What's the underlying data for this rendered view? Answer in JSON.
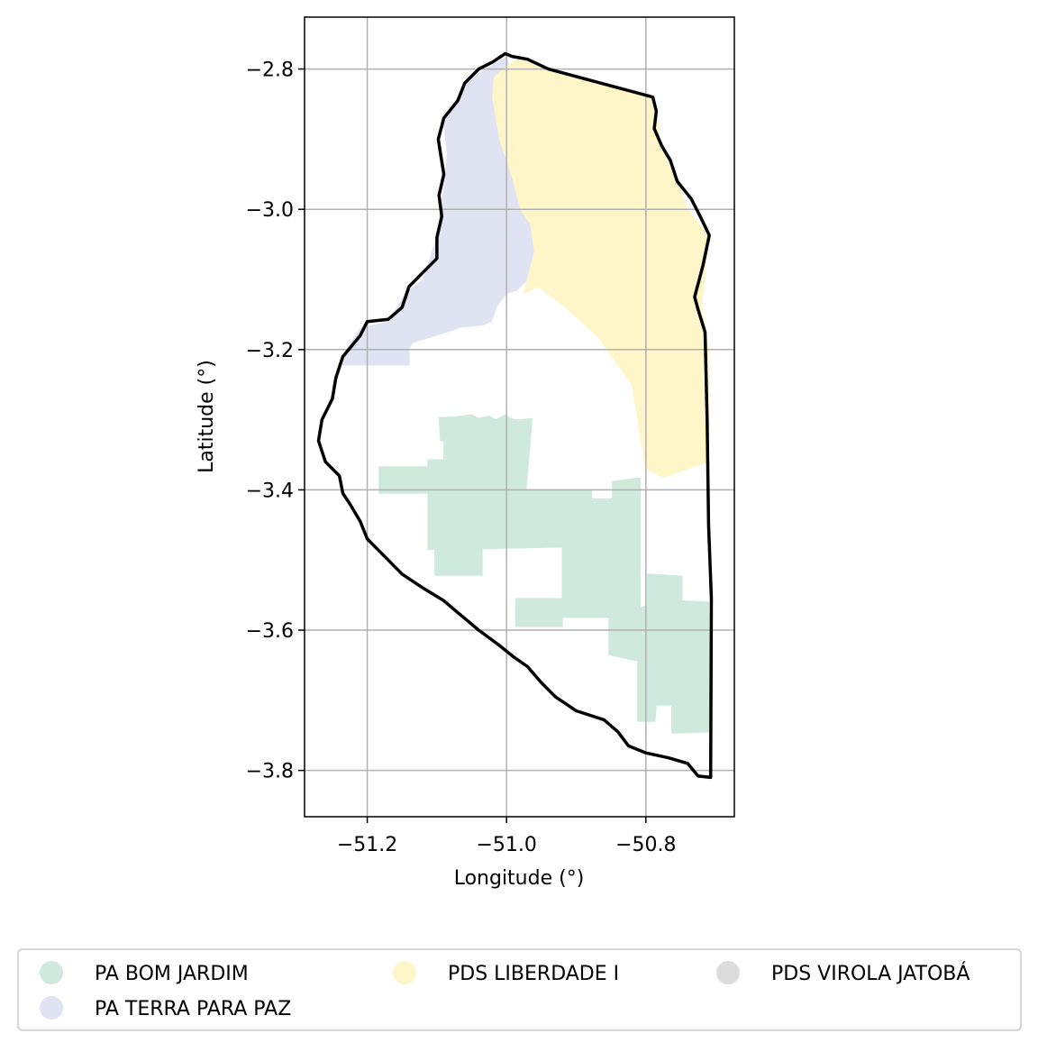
{
  "chart_data": {
    "type": "map",
    "title": "",
    "xlabel": "Longitude (°)",
    "ylabel": "Latitude (°)",
    "xlim": [
      -51.29,
      -50.673
    ],
    "ylim": [
      -3.866,
      -2.726
    ],
    "xticks": [
      {
        "value": -51.2,
        "label": "−51.2"
      },
      {
        "value": -51.0,
        "label": "−51.0"
      },
      {
        "value": -50.8,
        "label": "−50.8"
      }
    ],
    "yticks": [
      {
        "value": -2.8,
        "label": "−2.8"
      },
      {
        "value": -3.0,
        "label": "−3.0"
      },
      {
        "value": -3.2,
        "label": "−3.2"
      },
      {
        "value": -3.4,
        "label": "−3.4"
      },
      {
        "value": -3.6,
        "label": "−3.6"
      },
      {
        "value": -3.8,
        "label": "−3.8"
      }
    ],
    "grid": true,
    "legend_position": "bottom",
    "boundary_color": "#000000",
    "series": [
      {
        "name": "PA BOM JARDIM",
        "color": "#cfeadd",
        "polygons": [
          [
            [
              -51.183,
              -3.367
            ],
            [
              -51.113,
              -3.367
            ],
            [
              -51.113,
              -3.357
            ],
            [
              -51.09,
              -3.357
            ],
            [
              -51.09,
              -3.33
            ],
            [
              -51.095,
              -3.33
            ],
            [
              -51.097,
              -3.297
            ],
            [
              -51.075,
              -3.296
            ],
            [
              -51.05,
              -3.293
            ],
            [
              -51.04,
              -3.298
            ],
            [
              -51.025,
              -3.295
            ],
            [
              -51.015,
              -3.3
            ],
            [
              -51.002,
              -3.293
            ],
            [
              -50.99,
              -3.3
            ],
            [
              -50.98,
              -3.3
            ],
            [
              -50.963,
              -3.298
            ],
            [
              -50.972,
              -3.4
            ],
            [
              -50.878,
              -3.4
            ],
            [
              -50.878,
              -3.413
            ],
            [
              -50.848,
              -3.413
            ],
            [
              -50.848,
              -3.388
            ],
            [
              -50.808,
              -3.383
            ],
            [
              -50.808,
              -3.568
            ],
            [
              -50.798,
              -3.565
            ],
            [
              -50.798,
              -3.52
            ],
            [
              -50.748,
              -3.523
            ],
            [
              -50.748,
              -3.558
            ],
            [
              -50.71,
              -3.56
            ],
            [
              -50.708,
              -3.745
            ],
            [
              -50.763,
              -3.747
            ],
            [
              -50.763,
              -3.707
            ],
            [
              -50.785,
              -3.707
            ],
            [
              -50.787,
              -3.73
            ],
            [
              -50.812,
              -3.73
            ],
            [
              -50.812,
              -3.644
            ],
            [
              -50.853,
              -3.635
            ],
            [
              -50.853,
              -3.582
            ],
            [
              -50.92,
              -3.582
            ],
            [
              -50.92,
              -3.555
            ],
            [
              -50.987,
              -3.555
            ],
            [
              -50.987,
              -3.595
            ],
            [
              -50.92,
              -3.595
            ],
            [
              -50.92,
              -3.478
            ],
            [
              -50.85,
              -3.48
            ],
            [
              -51.035,
              -3.484
            ],
            [
              -51.035,
              -3.522
            ],
            [
              -51.103,
              -3.522
            ],
            [
              -51.103,
              -3.485
            ],
            [
              -51.113,
              -3.485
            ],
            [
              -51.113,
              -3.405
            ],
            [
              -51.183,
              -3.405
            ]
          ]
        ]
      },
      {
        "name": "PA TERRA PARA PAZ",
        "color": "#dfe3f2",
        "polygons": [
          [
            [
              -51.0,
              -2.783
            ],
            [
              -50.997,
              -2.793
            ],
            [
              -51.018,
              -2.812
            ],
            [
              -51.02,
              -2.84
            ],
            [
              -51.015,
              -2.87
            ],
            [
              -51.01,
              -2.9
            ],
            [
              -51.0,
              -2.93
            ],
            [
              -50.99,
              -2.96
            ],
            [
              -50.98,
              -3.0
            ],
            [
              -50.966,
              -3.02
            ],
            [
              -50.96,
              -3.06
            ],
            [
              -50.97,
              -3.1
            ],
            [
              -50.985,
              -3.115
            ],
            [
              -51.0,
              -3.12
            ],
            [
              -51.015,
              -3.14
            ],
            [
              -51.022,
              -3.16
            ],
            [
              -51.035,
              -3.165
            ],
            [
              -51.065,
              -3.168
            ],
            [
              -51.095,
              -3.178
            ],
            [
              -51.135,
              -3.19
            ],
            [
              -51.14,
              -3.198
            ],
            [
              -51.14,
              -3.222
            ],
            [
              -51.235,
              -3.222
            ],
            [
              -51.23,
              -3.2
            ],
            [
              -51.21,
              -3.17
            ],
            [
              -51.17,
              -3.16
            ],
            [
              -51.145,
              -3.12
            ],
            [
              -51.12,
              -3.1
            ],
            [
              -51.1,
              -3.04
            ],
            [
              -51.09,
              -2.97
            ],
            [
              -51.085,
              -2.92
            ],
            [
              -51.09,
              -2.88
            ],
            [
              -51.06,
              -2.82
            ],
            [
              -51.03,
              -2.8
            ]
          ]
        ]
      },
      {
        "name": "PDS LIBERDADE I",
        "color": "#fef6c8",
        "polygons": [
          [
            [
              -50.995,
              -2.792
            ],
            [
              -50.98,
              -2.786
            ],
            [
              -50.94,
              -2.8
            ],
            [
              -50.79,
              -2.84
            ],
            [
              -50.784,
              -2.87
            ],
            [
              -50.78,
              -2.9
            ],
            [
              -50.77,
              -2.93
            ],
            [
              -50.755,
              -2.96
            ],
            [
              -50.74,
              -3.0
            ],
            [
              -50.71,
              -3.04
            ],
            [
              -50.72,
              -3.14
            ],
            [
              -50.71,
              -3.2
            ],
            [
              -50.71,
              -3.36
            ],
            [
              -50.74,
              -3.37
            ],
            [
              -50.775,
              -3.382
            ],
            [
              -50.8,
              -3.37
            ],
            [
              -50.82,
              -3.25
            ],
            [
              -50.87,
              -3.18
            ],
            [
              -50.915,
              -3.14
            ],
            [
              -50.955,
              -3.11
            ],
            [
              -50.975,
              -3.12
            ],
            [
              -50.97,
              -3.1
            ],
            [
              -50.96,
              -3.06
            ],
            [
              -50.966,
              -3.02
            ],
            [
              -50.98,
              -3.0
            ],
            [
              -50.99,
              -2.96
            ],
            [
              -51.0,
              -2.93
            ],
            [
              -51.01,
              -2.9
            ],
            [
              -51.015,
              -2.87
            ],
            [
              -51.02,
              -2.84
            ],
            [
              -51.018,
              -2.812
            ]
          ]
        ]
      },
      {
        "name": "PDS VIROLA JATOBÁ",
        "color": "#dcdcdc",
        "polygons": []
      }
    ],
    "boundary": [
      [
        -51.002,
        -2.778
      ],
      [
        -50.992,
        -2.782
      ],
      [
        -50.97,
        -2.786
      ],
      [
        -50.94,
        -2.8
      ],
      [
        -50.79,
        -2.84
      ],
      [
        -50.785,
        -2.86
      ],
      [
        -50.788,
        -2.885
      ],
      [
        -50.777,
        -2.91
      ],
      [
        -50.765,
        -2.93
      ],
      [
        -50.755,
        -2.96
      ],
      [
        -50.735,
        -2.985
      ],
      [
        -50.722,
        -3.01
      ],
      [
        -50.709,
        -3.037
      ],
      [
        -50.718,
        -3.08
      ],
      [
        -50.73,
        -3.125
      ],
      [
        -50.725,
        -3.143
      ],
      [
        -50.715,
        -3.175
      ],
      [
        -50.712,
        -3.3
      ],
      [
        -50.71,
        -3.45
      ],
      [
        -50.706,
        -3.555
      ],
      [
        -50.707,
        -3.81
      ],
      [
        -50.725,
        -3.808
      ],
      [
        -50.74,
        -3.79
      ],
      [
        -50.768,
        -3.782
      ],
      [
        -50.8,
        -3.775
      ],
      [
        -50.825,
        -3.765
      ],
      [
        -50.84,
        -3.745
      ],
      [
        -50.86,
        -3.728
      ],
      [
        -50.9,
        -3.715
      ],
      [
        -50.93,
        -3.695
      ],
      [
        -50.95,
        -3.675
      ],
      [
        -50.97,
        -3.652
      ],
      [
        -50.99,
        -3.638
      ],
      [
        -51.01,
        -3.622
      ],
      [
        -51.04,
        -3.6
      ],
      [
        -51.07,
        -3.575
      ],
      [
        -51.09,
        -3.558
      ],
      [
        -51.12,
        -3.54
      ],
      [
        -51.15,
        -3.52
      ],
      [
        -51.17,
        -3.5
      ],
      [
        -51.2,
        -3.47
      ],
      [
        -51.21,
        -3.445
      ],
      [
        -51.225,
        -3.42
      ],
      [
        -51.235,
        -3.405
      ],
      [
        -51.24,
        -3.38
      ],
      [
        -51.26,
        -3.36
      ],
      [
        -51.27,
        -3.33
      ],
      [
        -51.265,
        -3.3
      ],
      [
        -51.25,
        -3.27
      ],
      [
        -51.245,
        -3.24
      ],
      [
        -51.235,
        -3.21
      ],
      [
        -51.21,
        -3.18
      ],
      [
        -51.2,
        -3.16
      ],
      [
        -51.17,
        -3.157
      ],
      [
        -51.15,
        -3.14
      ],
      [
        -51.14,
        -3.11
      ],
      [
        -51.12,
        -3.09
      ],
      [
        -51.1,
        -3.07
      ],
      [
        -51.1,
        -3.04
      ],
      [
        -51.093,
        -3.01
      ],
      [
        -51.097,
        -2.98
      ],
      [
        -51.09,
        -2.95
      ],
      [
        -51.095,
        -2.92
      ],
      [
        -51.098,
        -2.9
      ],
      [
        -51.09,
        -2.87
      ],
      [
        -51.07,
        -2.845
      ],
      [
        -51.06,
        -2.82
      ],
      [
        -51.04,
        -2.8
      ],
      [
        -51.02,
        -2.79
      ]
    ]
  }
}
